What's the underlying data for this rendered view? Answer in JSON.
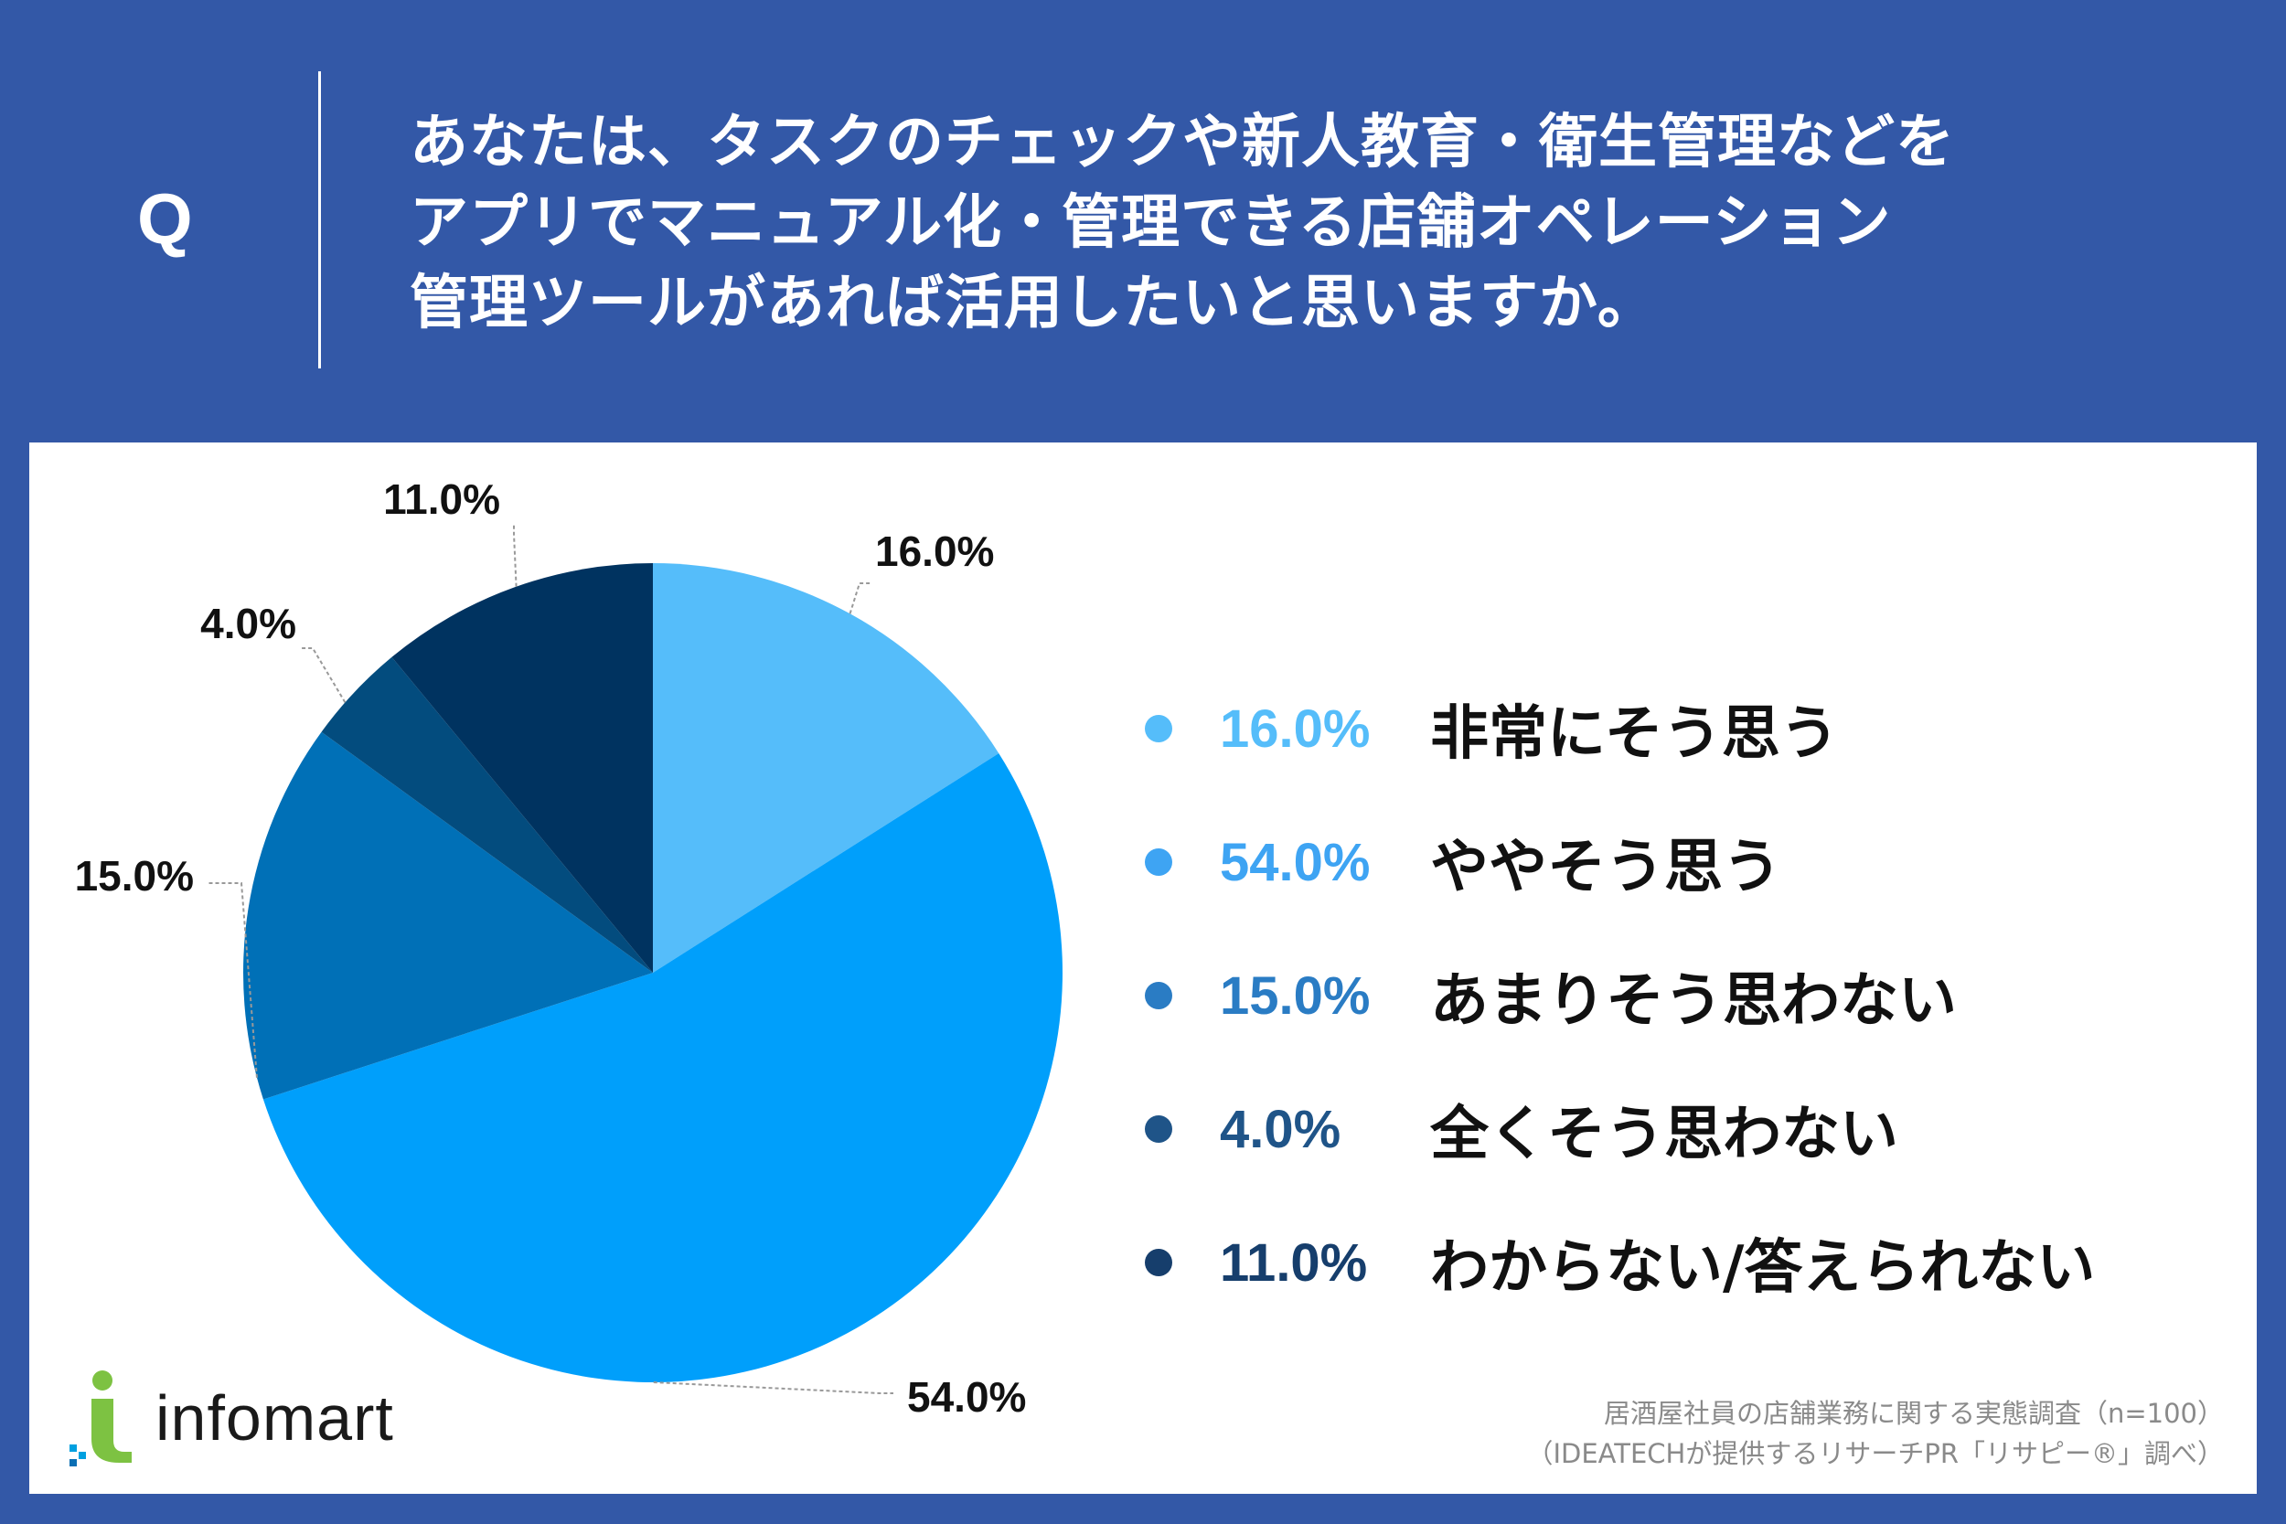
{
  "header": {
    "q_mark": "Q",
    "question_lines": [
      "あなたは、タスクのチェックや新人教育・衛生管理などを",
      "アプリでマニュアル化・管理できる店舗オペレーション",
      "管理ツールがあれば活用したいと思いますか。"
    ]
  },
  "chart_data": {
    "type": "pie",
    "start_angle_deg": 0,
    "direction": "clockwise",
    "slices": [
      {
        "label": "非常にそう思う",
        "value": 16.0,
        "value_label": "16.0%",
        "color": "#55bdfa"
      },
      {
        "label": "ややそう思う",
        "value": 54.0,
        "value_label": "54.0%",
        "color": "#009ffb"
      },
      {
        "label": "あまりそう思わない",
        "value": 15.0,
        "value_label": "15.0%",
        "color": "#0070b7"
      },
      {
        "label": "全くそう思わない",
        "value": 4.0,
        "value_label": "4.0%",
        "color": "#034c7e"
      },
      {
        "label": "わからない/答えられない",
        "value": 11.0,
        "value_label": "11.0%",
        "color": "#003360"
      }
    ],
    "legend_placement": "right"
  },
  "legend_pct_colors": [
    "#55bdfa",
    "#3ea4f3",
    "#2a7cc4",
    "#1f5488",
    "#163e6c"
  ],
  "logo": {
    "text": "infomart"
  },
  "source_lines": [
    "居酒屋社員の店舗業務に関する実態調査（n=100）",
    "（IDEATECHが提供するリサーチPR「リサピー®」調べ）"
  ]
}
